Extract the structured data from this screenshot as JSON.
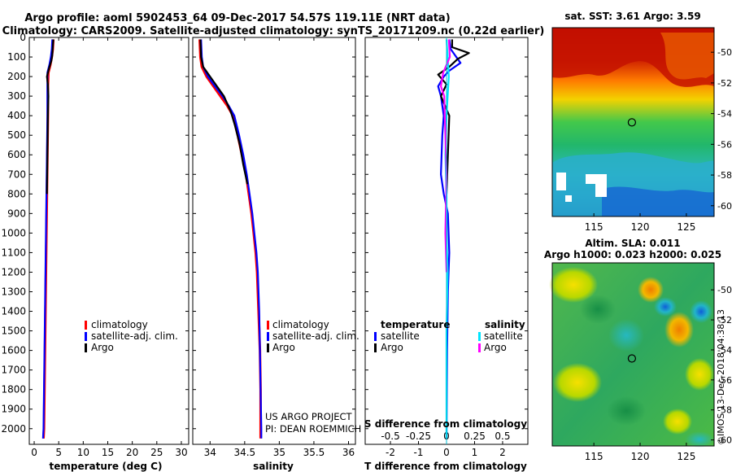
{
  "header": {
    "line1": "Argo profile: aoml 5902453_64 09-Dec-2017 54.57S 119.11E (NRT data)",
    "line2": "Climatology: CARS2009. Satellite-adjusted climatology: synTS_20171209.nc (0.22d earlier)"
  },
  "colors": {
    "climatology": "#ff0000",
    "satellite_adj": "#0000ff",
    "argo": "#000000",
    "salinity_satellite": "#00e5ff",
    "salinity_argo": "#ff00ff"
  },
  "chart_data": [
    {
      "id": "temperature",
      "type": "line",
      "xlabel": "temperature (deg C)",
      "ylabel": "",
      "xlim": [
        -1,
        31.5
      ],
      "ylim": [
        2080,
        0
      ],
      "xticks": [
        0,
        5,
        10,
        15,
        20,
        25,
        30
      ],
      "yticks": [
        0,
        100,
        200,
        300,
        400,
        500,
        600,
        700,
        800,
        900,
        1000,
        1100,
        1200,
        1300,
        1400,
        1500,
        1600,
        1700,
        1800,
        1900,
        2000
      ],
      "legend": [
        "climatology",
        "satellite-adj. clim.",
        "Argo"
      ],
      "series": [
        {
          "name": "climatology",
          "color_key": "climatology",
          "points": [
            [
              3.9,
              10
            ],
            [
              3.8,
              60
            ],
            [
              3.6,
              100
            ],
            [
              3.3,
              140
            ],
            [
              2.9,
              180
            ],
            [
              2.8,
              250
            ],
            [
              2.8,
              400
            ],
            [
              2.7,
              600
            ],
            [
              2.6,
              800
            ],
            [
              2.5,
              1000
            ],
            [
              2.4,
              1200
            ],
            [
              2.3,
              1400
            ],
            [
              2.2,
              1600
            ],
            [
              2.1,
              1800
            ],
            [
              2.0,
              2000
            ],
            [
              1.9,
              2050
            ]
          ]
        },
        {
          "name": "satellite-adj. clim.",
          "color_key": "satellite_adj",
          "points": [
            [
              3.7,
              10
            ],
            [
              3.6,
              60
            ],
            [
              3.4,
              100
            ],
            [
              3.1,
              140
            ],
            [
              2.7,
              180
            ],
            [
              2.7,
              250
            ],
            [
              2.7,
              400
            ],
            [
              2.6,
              600
            ],
            [
              2.5,
              800
            ],
            [
              2.4,
              1000
            ],
            [
              2.3,
              1200
            ],
            [
              2.2,
              1400
            ],
            [
              2.1,
              1600
            ],
            [
              2.0,
              1800
            ],
            [
              1.9,
              2000
            ],
            [
              1.8,
              2050
            ]
          ]
        },
        {
          "name": "Argo",
          "color_key": "argo",
          "points": [
            [
              3.9,
              10
            ],
            [
              3.8,
              50
            ],
            [
              3.7,
              90
            ],
            [
              3.5,
              120
            ],
            [
              3.0,
              160
            ],
            [
              2.6,
              200
            ],
            [
              2.8,
              240
            ],
            [
              2.9,
              300
            ],
            [
              2.8,
              400
            ],
            [
              2.7,
              600
            ],
            [
              2.6,
              800
            ]
          ]
        }
      ]
    },
    {
      "id": "salinity",
      "type": "line",
      "xlabel": "salinity",
      "ylabel": "",
      "xlim": [
        33.75,
        36.1
      ],
      "ylim": [
        2080,
        0
      ],
      "xticks": [
        34,
        34.5,
        35,
        35.5,
        36
      ],
      "legend": [
        "climatology",
        "satellite-adj. clim.",
        "Argo"
      ],
      "annotation": [
        "US ARGO PROJECT",
        "PI: DEAN ROEMMICH"
      ],
      "series": [
        {
          "name": "climatology",
          "color_key": "climatology",
          "points": [
            [
              33.85,
              10
            ],
            [
              33.86,
              100
            ],
            [
              33.88,
              150
            ],
            [
              33.95,
              200
            ],
            [
              34.05,
              250
            ],
            [
              34.15,
              300
            ],
            [
              34.25,
              350
            ],
            [
              34.33,
              400
            ],
            [
              34.4,
              500
            ],
            [
              34.46,
              600
            ],
            [
              34.52,
              700
            ],
            [
              34.56,
              800
            ],
            [
              34.6,
              900
            ],
            [
              34.63,
              1000
            ],
            [
              34.66,
              1100
            ],
            [
              34.68,
              1200
            ],
            [
              34.7,
              1400
            ],
            [
              34.72,
              1600
            ],
            [
              34.73,
              1800
            ],
            [
              34.73,
              2000
            ],
            [
              34.73,
              2050
            ]
          ]
        },
        {
          "name": "satellite-adj. clim.",
          "color_key": "satellite_adj",
          "points": [
            [
              33.87,
              10
            ],
            [
              33.88,
              100
            ],
            [
              33.9,
              150
            ],
            [
              33.97,
              200
            ],
            [
              34.07,
              250
            ],
            [
              34.18,
              300
            ],
            [
              34.27,
              350
            ],
            [
              34.35,
              400
            ],
            [
              34.42,
              500
            ],
            [
              34.48,
              600
            ],
            [
              34.53,
              700
            ],
            [
              34.57,
              800
            ],
            [
              34.61,
              900
            ],
            [
              34.64,
              1000
            ],
            [
              34.67,
              1100
            ],
            [
              34.69,
              1200
            ],
            [
              34.71,
              1400
            ],
            [
              34.72,
              1600
            ],
            [
              34.73,
              1800
            ],
            [
              34.74,
              2000
            ],
            [
              34.74,
              2050
            ]
          ]
        },
        {
          "name": "Argo",
          "color_key": "argo",
          "points": [
            [
              33.86,
              10
            ],
            [
              33.87,
              100
            ],
            [
              33.9,
              150
            ],
            [
              34.0,
              200
            ],
            [
              34.1,
              250
            ],
            [
              34.2,
              300
            ],
            [
              34.3,
              380
            ],
            [
              34.36,
              450
            ],
            [
              34.43,
              550
            ],
            [
              34.48,
              650
            ],
            [
              34.54,
              750
            ]
          ]
        }
      ]
    },
    {
      "id": "difference",
      "type": "line",
      "xlabel": "T difference from climatology",
      "top_axis_label": "S difference from climatology",
      "xlim": [
        -2.9,
        2.9
      ],
      "ylim": [
        2080,
        0
      ],
      "xticks": [
        -2,
        -1,
        0,
        1,
        2
      ],
      "xtick_labels": [
        "-2",
        "-1",
        "0",
        "1",
        "2"
      ],
      "sticks": [
        -0.5,
        -0.25,
        0,
        0.25,
        0.5
      ],
      "stick_labels": [
        "-0.5",
        "-0.25",
        "0",
        "0.25",
        "0.5"
      ],
      "s_scale": 4,
      "legend_temperature_title": "temperature",
      "legend_salinity_title": "salinity",
      "legend_temperature": [
        "satellite",
        "Argo"
      ],
      "legend_salinity": [
        "satellite",
        "Argo"
      ],
      "series": [
        {
          "name": "temperature satellite",
          "color_key": "satellite_adj",
          "points": [
            [
              0.1,
              10
            ],
            [
              0.15,
              60
            ],
            [
              0.3,
              90
            ],
            [
              0.5,
              130
            ],
            [
              0.1,
              170
            ],
            [
              -0.1,
              200
            ],
            [
              -0.3,
              250
            ],
            [
              -0.2,
              300
            ],
            [
              -0.1,
              400
            ],
            [
              -0.15,
              500
            ],
            [
              -0.2,
              700
            ],
            [
              -0.1,
              800
            ],
            [
              0.05,
              900
            ],
            [
              0.1,
              1100
            ],
            [
              0.05,
              1300
            ],
            [
              0.02,
              1600
            ],
            [
              0.0,
              2050
            ]
          ]
        },
        {
          "name": "temperature Argo",
          "color_key": "argo",
          "points": [
            [
              0.2,
              10
            ],
            [
              0.2,
              50
            ],
            [
              0.8,
              80
            ],
            [
              0.4,
              110
            ],
            [
              0.1,
              150
            ],
            [
              -0.3,
              190
            ],
            [
              0.0,
              240
            ],
            [
              -0.2,
              300
            ],
            [
              0.1,
              400
            ],
            [
              0.05,
              600
            ],
            [
              0.0,
              800
            ]
          ]
        },
        {
          "name": "salinity satellite",
          "color_key": "salinity_satellite",
          "points": [
            [
              0.0,
              10
            ],
            [
              0.01,
              100
            ],
            [
              0.02,
              200
            ],
            [
              0.0,
              400
            ],
            [
              -0.01,
              600
            ],
            [
              0.0,
              800
            ],
            [
              0.0,
              1000
            ],
            [
              0.01,
              1200
            ],
            [
              0.0,
              1500
            ],
            [
              0.0,
              2050
            ]
          ]
        },
        {
          "name": "salinity Argo",
          "color_key": "salinity_argo",
          "points": [
            [
              0.02,
              10
            ],
            [
              0.03,
              100
            ],
            [
              -0.03,
              180
            ],
            [
              -0.05,
              250
            ],
            [
              -0.02,
              300
            ],
            [
              -0.01,
              500
            ],
            [
              0.0,
              700
            ],
            [
              -0.01,
              1000
            ],
            [
              0.0,
              1200
            ]
          ]
        }
      ]
    },
    {
      "id": "sst_map",
      "type": "heatmap",
      "title": "sat. SST: 3.61 Argo: 3.59",
      "xticks": [
        115,
        120,
        125
      ],
      "yticks": [
        -50,
        -52,
        -54,
        -56,
        -58,
        -60
      ],
      "xlim": [
        110.5,
        128
      ],
      "ylim": [
        -60.7,
        -48.4
      ],
      "marker": {
        "lon": 119.11,
        "lat": -54.57
      }
    },
    {
      "id": "sla_map",
      "type": "heatmap",
      "title_line1": "Altim. SLA: 0.011",
      "title_line2": "Argo h1000: 0.023 h2000: 0.025",
      "xticks": [
        115,
        120,
        125
      ],
      "yticks": [
        -50,
        -52,
        -54,
        -56,
        -58,
        -60
      ],
      "xlim": [
        110.5,
        128
      ],
      "ylim": [
        -60.4,
        -48.2
      ],
      "marker": {
        "lon": 119.11,
        "lat": -54.57
      }
    }
  ],
  "credit": "©IMOS 13-Dec-2018 04:38:13"
}
